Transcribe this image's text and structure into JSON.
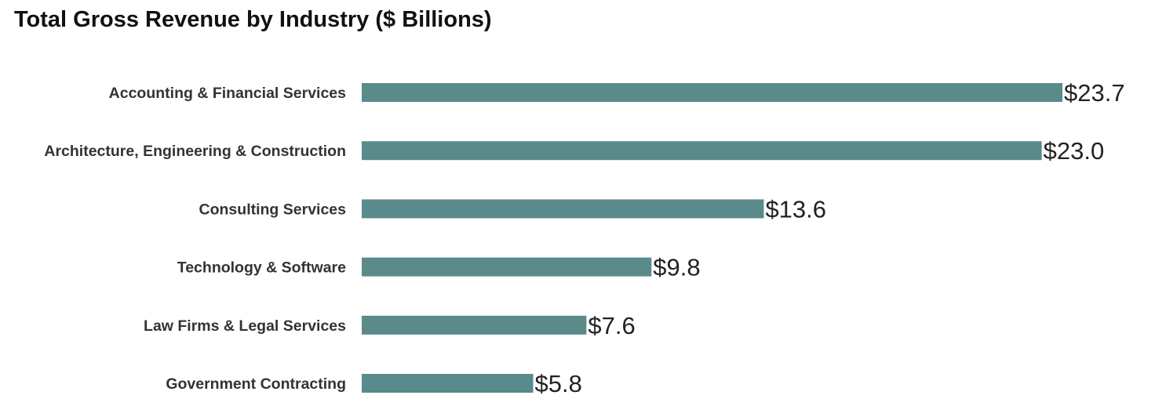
{
  "chart_data": {
    "type": "bar",
    "orientation": "horizontal",
    "title": "Total Gross Revenue by Industry ($ Billions)",
    "xlabel": "",
    "ylabel": "",
    "categories": [
      "Accounting & Financial Services",
      "Architecture, Engineering & Construction",
      "Consulting Services",
      "Technology & Software",
      "Law Firms & Legal Services",
      "Government Contracting"
    ],
    "values": [
      23.7,
      23.0,
      13.6,
      9.8,
      7.6,
      5.8
    ],
    "value_labels": [
      "$23.7",
      "$23.0",
      "$13.6",
      "$9.8",
      "$7.6",
      "$5.8"
    ],
    "xlim": [
      0,
      23.7
    ],
    "grid": false,
    "legend": "none",
    "bar_color": "#5a8a8a"
  }
}
